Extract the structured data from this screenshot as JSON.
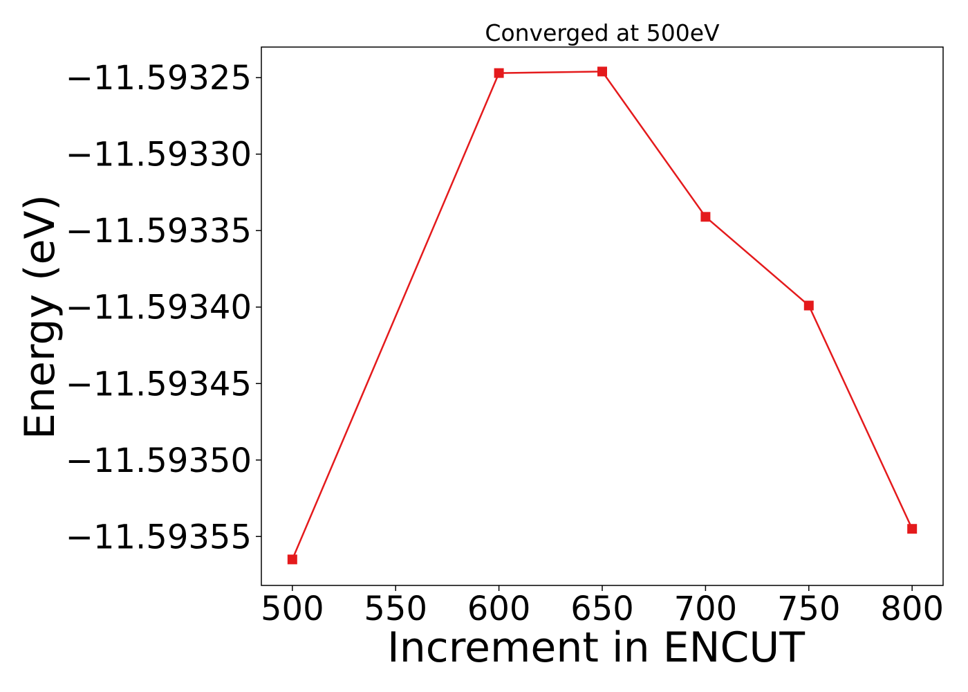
{
  "chart_data": {
    "type": "line",
    "title": "Converged at 500eV",
    "xlabel": "Increment in ENCUT",
    "ylabel": "Energy (eV)",
    "xlim": [
      485,
      815
    ],
    "ylim": [
      -11.593582,
      -11.59323
    ],
    "x_ticks": [
      500,
      550,
      600,
      650,
      700,
      750,
      800
    ],
    "x_tick_labels": [
      "500",
      "550",
      "600",
      "650",
      "700",
      "750",
      "800"
    ],
    "y_ticks": [
      -11.59325,
      -11.5933,
      -11.59335,
      -11.5934,
      -11.59345,
      -11.5935,
      -11.59355
    ],
    "y_tick_labels": [
      "−11.59325",
      "−11.59330",
      "−11.59335",
      "−11.59340",
      "−11.59345",
      "−11.59350",
      "−11.59355"
    ],
    "grid": false,
    "series": [
      {
        "marker": "square",
        "color": "#e41a1c",
        "x": [
          500,
          600,
          650,
          700,
          750,
          800
        ],
        "y": [
          -11.593565,
          -11.593247,
          -11.593246,
          -11.593341,
          -11.593399,
          -11.593545
        ]
      }
    ]
  }
}
